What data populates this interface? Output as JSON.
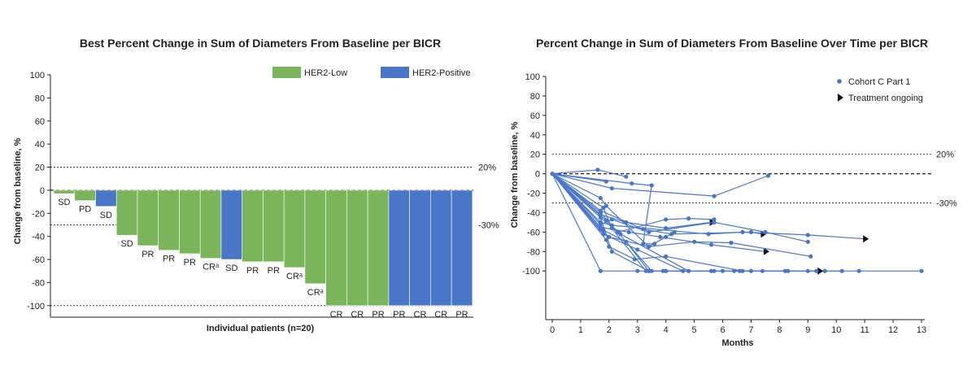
{
  "chart_data": [
    {
      "type": "bar",
      "title": "Best Percent Change in Sum of Diameters From Baseline per BICR",
      "xlabel": "Individual patients (n=20)",
      "ylabel": "Change from baseline, %",
      "ylim": [
        -110,
        100
      ],
      "yticks": [
        100,
        80,
        60,
        40,
        20,
        0,
        -20,
        -40,
        -60,
        -80,
        -100
      ],
      "reference_lines": [
        {
          "y": 20,
          "label": "20%"
        },
        {
          "y": 0,
          "label": ""
        },
        {
          "y": -30,
          "label": "-30%"
        },
        {
          "y": -100,
          "label": ""
        }
      ],
      "legend_position": "top-right",
      "colors": {
        "HER2-Low": "#7ab55c",
        "HER2-Positive": "#4a76c8"
      },
      "series": [
        {
          "name": "HER2-Low"
        },
        {
          "name": "HER2-Positive"
        }
      ],
      "bars": [
        {
          "value": -3,
          "group": "HER2-Low",
          "label": "SD"
        },
        {
          "value": -9,
          "group": "HER2-Low",
          "label": "PD"
        },
        {
          "value": -14,
          "group": "HER2-Positive",
          "label": "SD"
        },
        {
          "value": -39,
          "group": "HER2-Low",
          "label": "SD"
        },
        {
          "value": -48,
          "group": "HER2-Low",
          "label": "PR"
        },
        {
          "value": -52,
          "group": "HER2-Low",
          "label": "PR"
        },
        {
          "value": -55,
          "group": "HER2-Low",
          "label": "PR"
        },
        {
          "value": -59,
          "group": "HER2-Low",
          "label": "CRᵃ"
        },
        {
          "value": -60,
          "group": "HER2-Positive",
          "label": "SD"
        },
        {
          "value": -62,
          "group": "HER2-Low",
          "label": "PR"
        },
        {
          "value": -62,
          "group": "HER2-Low",
          "label": "PR"
        },
        {
          "value": -67,
          "group": "HER2-Low",
          "label": "CRᵃ"
        },
        {
          "value": -81,
          "group": "HER2-Low",
          "label": "CRᵃ"
        },
        {
          "value": -100,
          "group": "HER2-Low",
          "label": "CR"
        },
        {
          "value": -100,
          "group": "HER2-Low",
          "label": "CR"
        },
        {
          "value": -100,
          "group": "HER2-Low",
          "label": "PR"
        },
        {
          "value": -100,
          "group": "HER2-Positive",
          "label": "PR"
        },
        {
          "value": -100,
          "group": "HER2-Positive",
          "label": "CR"
        },
        {
          "value": -100,
          "group": "HER2-Positive",
          "label": "CR"
        },
        {
          "value": -100,
          "group": "HER2-Positive",
          "label": "PR"
        }
      ]
    },
    {
      "type": "line",
      "title": "Percent Change in Sum of Diameters From Baseline Over Time per BICR",
      "xlabel": "Months",
      "ylabel": "Change from baseline, %",
      "xlim": [
        0,
        13
      ],
      "ylim": [
        -150,
        100
      ],
      "xticks": [
        0,
        1,
        2,
        3,
        4,
        5,
        6,
        7,
        8,
        9,
        10,
        11,
        12,
        13
      ],
      "yticks": [
        100,
        80,
        60,
        40,
        20,
        0,
        -20,
        -40,
        -60,
        -80,
        -100
      ],
      "reference_lines": [
        {
          "y": 20,
          "label": "20%"
        },
        {
          "y": 0,
          "label": ""
        },
        {
          "y": -30,
          "label": "-30%"
        }
      ],
      "legend_position": "top-right",
      "legend": [
        {
          "name": "Cohort C Part 1",
          "marker": "circle"
        },
        {
          "name": "Treatment ongoing",
          "marker": "triangle"
        }
      ],
      "color": "#4a76c8",
      "series": [
        {
          "points": [
            [
              0,
              0
            ],
            [
              1.6,
              4
            ],
            [
              2.6,
              -3
            ]
          ]
        },
        {
          "points": [
            [
              0,
              0
            ],
            [
              1.9,
              -8
            ]
          ]
        },
        {
          "points": [
            [
              0,
              0
            ],
            [
              2.1,
              -15
            ],
            [
              5.7,
              -23
            ],
            [
              7.6,
              -2
            ]
          ]
        },
        {
          "points": [
            [
              0,
              0
            ],
            [
              2.8,
              -10
            ],
            [
              3.5,
              -12
            ],
            [
              3.2,
              -72
            ],
            [
              3.6,
              -72
            ]
          ]
        },
        {
          "points": [
            [
              0,
              0
            ],
            [
              1.7,
              -25
            ],
            [
              1.9,
              -33
            ],
            [
              3.4,
              -75
            ],
            [
              4.0,
              -65
            ],
            [
              4.3,
              -60
            ]
          ],
          "ongoing": false
        },
        {
          "points": [
            [
              0,
              0
            ],
            [
              1.7,
              -42
            ],
            [
              2.6,
              -50
            ],
            [
              4.0,
              -56
            ],
            [
              5.6,
              -50
            ]
          ],
          "ongoing": true
        },
        {
          "points": [
            [
              0,
              0
            ],
            [
              1.7,
              -38
            ],
            [
              3.2,
              -57
            ],
            [
              4.2,
              -62
            ],
            [
              7.0,
              -60
            ],
            [
              7.4,
              -62
            ]
          ],
          "ongoing": true
        },
        {
          "points": [
            [
              0,
              0
            ],
            [
              1.7,
              -45
            ],
            [
              2.3,
              -60
            ],
            [
              4.0,
              -47
            ],
            [
              4.8,
              -46
            ],
            [
              5.7,
              -47
            ]
          ]
        },
        {
          "points": [
            [
              0,
              0
            ],
            [
              1.7,
              -50
            ],
            [
              2.1,
              -53
            ],
            [
              5.5,
              -62
            ],
            [
              6.7,
              -60
            ],
            [
              9.0,
              -63
            ],
            [
              11.0,
              -67
            ]
          ],
          "ongoing": true
        },
        {
          "points": [
            [
              0,
              0
            ],
            [
              1.7,
              -52
            ],
            [
              2.1,
              -47
            ],
            [
              3.4,
              -60
            ],
            [
              5.7,
              -50
            ],
            [
              7.5,
              -60
            ],
            [
              9.0,
              -70
            ]
          ]
        },
        {
          "points": [
            [
              0,
              0
            ],
            [
              1.7,
              -55
            ],
            [
              2.7,
              -60
            ],
            [
              3.8,
              -65
            ],
            [
              5.6,
              -73
            ],
            [
              7.5,
              -80
            ]
          ],
          "ongoing": true
        },
        {
          "points": [
            [
              0,
              0
            ],
            [
              1.7,
              -57
            ],
            [
              2.0,
              -65
            ],
            [
              3.4,
              -75
            ],
            [
              5.0,
              -70
            ],
            [
              6.3,
              -71
            ],
            [
              9.1,
              -85
            ]
          ]
        },
        {
          "points": [
            [
              0,
              0
            ],
            [
              1.9,
              -68
            ],
            [
              2.0,
              -75
            ],
            [
              2.9,
              -88
            ],
            [
              4.0,
              -85
            ],
            [
              6.7,
              -100
            ],
            [
              7.4,
              -100
            ]
          ]
        },
        {
          "points": [
            [
              0,
              0
            ],
            [
              1.7,
              -40
            ],
            [
              3.5,
              -100
            ],
            [
              3.9,
              -100
            ],
            [
              4.8,
              -100
            ]
          ]
        },
        {
          "points": [
            [
              0,
              0
            ],
            [
              1.7,
              -100
            ],
            [
              3.0,
              -100
            ],
            [
              4.0,
              -100
            ],
            [
              5.7,
              -100
            ],
            [
              8.2,
              -100
            ],
            [
              10.8,
              -100
            ],
            [
              13.0,
              -100
            ]
          ]
        },
        {
          "points": [
            [
              0,
              0
            ],
            [
              1.7,
              -45
            ],
            [
              2.1,
              -80
            ],
            [
              3.4,
              -100
            ],
            [
              5.6,
              -100
            ],
            [
              7.0,
              -100
            ],
            [
              9.0,
              -100
            ],
            [
              9.6,
              -100
            ],
            [
              10.2,
              -100
            ]
          ]
        },
        {
          "points": [
            [
              0,
              0
            ],
            [
              1.8,
              -35
            ],
            [
              2.1,
              -56
            ],
            [
              3.3,
              -100
            ],
            [
              6.0,
              -100
            ],
            [
              8.3,
              -100
            ],
            [
              9.4,
              -100
            ]
          ],
          "ongoing": true
        },
        {
          "points": [
            [
              0,
              0
            ],
            [
              1.9,
              -48
            ],
            [
              2.4,
              -62
            ],
            [
              4.8,
              -100
            ],
            [
              6.4,
              -100
            ]
          ]
        },
        {
          "points": [
            [
              0,
              0
            ],
            [
              1.8,
              -58
            ],
            [
              2.6,
              -70
            ],
            [
              3.4,
              -100
            ],
            [
              4.0,
              -100
            ]
          ]
        },
        {
          "points": [
            [
              0,
              0
            ],
            [
              1.8,
              -62
            ],
            [
              3.0,
              -78
            ],
            [
              4.6,
              -100
            ],
            [
              6.6,
              -100
            ],
            [
              9.3,
              -100
            ]
          ]
        }
      ]
    }
  ]
}
